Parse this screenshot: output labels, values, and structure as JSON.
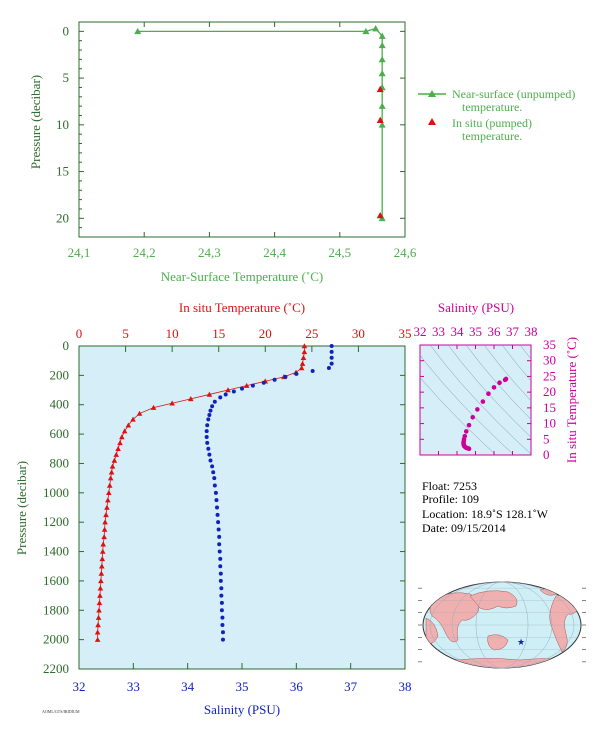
{
  "colors": {
    "green": "#4cae4c",
    "axis_green": "#2e6b2e",
    "red": "#dd1111",
    "blue": "#1122bb",
    "magenta": "#cc0099",
    "panel_bg": "#d6eef7",
    "map_land": "#f0b0b0",
    "map_ocean": "#cfeff6"
  },
  "top_chart": {
    "xlabel": "Near-Surface Temperature (˚C)",
    "ylabel": "Pressure (decibar)",
    "xticks": [
      "24,1",
      "24,2",
      "24,3",
      "24,4",
      "24,5",
      "24,6"
    ],
    "yticks": [
      "0",
      "5",
      "10",
      "15",
      "20"
    ],
    "legend": {
      "unpumped_line1": "Near-surface (unpumped)",
      "unpumped_line2": "temperature.",
      "pumped_line1": "In situ (pumped)",
      "pumped_line2": "temperature."
    }
  },
  "bottom_chart": {
    "top_xlabel": "In situ Temperature (˚C)",
    "bottom_xlabel": "Salinity (PSU)",
    "ylabel": "Pressure (decibar)",
    "temp_ticks": [
      "0",
      "5",
      "10",
      "15",
      "20",
      "25",
      "30",
      "35"
    ],
    "sal_ticks": [
      "32",
      "33",
      "34",
      "35",
      "36",
      "37",
      "38"
    ],
    "pressure_ticks": [
      "0",
      "200",
      "400",
      "600",
      "800",
      "1000",
      "1200",
      "1400",
      "1600",
      "1800",
      "2000",
      "2200"
    ],
    "footer_code": "AOML/GTS/IRIDIUM"
  },
  "ts_chart": {
    "title": "Salinity (PSU)",
    "ylabel": "In situ Temperature (˚C)",
    "sal_ticks": [
      "32",
      "33",
      "34",
      "35",
      "36",
      "37",
      "38"
    ],
    "temp_ticks": [
      "0",
      "5",
      "10",
      "15",
      "20",
      "25",
      "30",
      "35"
    ]
  },
  "info": {
    "float": "Float:  7253",
    "profile": "Profile:  109",
    "location": "Location:  18.9˚S  128.1˚W",
    "date": "Date:  09/15/2014"
  },
  "map": {
    "marker_icon": "star-icon"
  },
  "chart_data": [
    {
      "type": "line",
      "title": "",
      "xlabel": "Near-Surface Temperature (˚C)",
      "ylabel": "Pressure (decibar)",
      "xlim": [
        24.1,
        24.6
      ],
      "ylim": [
        22,
        -1
      ],
      "series": [
        {
          "name": "Near-surface (unpumped) temperature.",
          "points": [
            [
              24.19,
              0.0
            ],
            [
              24.54,
              0.0
            ],
            [
              24.555,
              -0.3
            ],
            [
              24.565,
              0.5
            ],
            [
              24.565,
              1.5
            ],
            [
              24.565,
              3.0
            ],
            [
              24.565,
              4.5
            ],
            [
              24.565,
              6.0
            ],
            [
              24.565,
              8.0
            ],
            [
              24.565,
              10.0
            ],
            [
              24.565,
              20.0
            ]
          ]
        },
        {
          "name": "In situ (pumped) temperature.",
          "points": [
            [
              24.562,
              6.2
            ],
            [
              24.562,
              9.5
            ],
            [
              24.562,
              19.7
            ]
          ]
        }
      ]
    },
    {
      "type": "scatter",
      "title": "",
      "ylabel": "Pressure (decibar)",
      "ylim": [
        2200,
        0
      ],
      "series": [
        {
          "name": "In situ Temperature (˚C)",
          "xlim": [
            0,
            35
          ],
          "points": [
            [
              24.2,
              0
            ],
            [
              24.2,
              40
            ],
            [
              24.1,
              80
            ],
            [
              24.0,
              120
            ],
            [
              23.9,
              150
            ],
            [
              23.3,
              180
            ],
            [
              22.0,
              210
            ],
            [
              20.0,
              240
            ],
            [
              18.0,
              270
            ],
            [
              16.0,
              300
            ],
            [
              14.0,
              330
            ],
            [
              12.0,
              360
            ],
            [
              10.0,
              390
            ],
            [
              8.0,
              420
            ],
            [
              6.5,
              460
            ],
            [
              5.8,
              500
            ],
            [
              5.3,
              540
            ],
            [
              4.9,
              580
            ],
            [
              4.6,
              620
            ],
            [
              4.4,
              660
            ],
            [
              4.2,
              700
            ],
            [
              4.0,
              740
            ],
            [
              3.8,
              780
            ],
            [
              3.6,
              820
            ],
            [
              3.5,
              860
            ],
            [
              3.4,
              900
            ],
            [
              3.3,
              950
            ],
            [
              3.2,
              1000
            ],
            [
              3.1,
              1050
            ],
            [
              3.0,
              1100
            ],
            [
              2.9,
              1150
            ],
            [
              2.8,
              1200
            ],
            [
              2.75,
              1250
            ],
            [
              2.7,
              1300
            ],
            [
              2.6,
              1350
            ],
            [
              2.55,
              1400
            ],
            [
              2.5,
              1450
            ],
            [
              2.45,
              1500
            ],
            [
              2.4,
              1550
            ],
            [
              2.35,
              1600
            ],
            [
              2.3,
              1650
            ],
            [
              2.25,
              1700
            ],
            [
              2.2,
              1750
            ],
            [
              2.15,
              1800
            ],
            [
              2.1,
              1850
            ],
            [
              2.05,
              1900
            ],
            [
              2.0,
              1950
            ],
            [
              2.0,
              2000
            ]
          ]
        },
        {
          "name": "Salinity (PSU)",
          "xlim": [
            32,
            38
          ],
          "points": [
            [
              36.65,
              0
            ],
            [
              36.65,
              40
            ],
            [
              36.65,
              80
            ],
            [
              36.65,
              120
            ],
            [
              36.6,
              150
            ],
            [
              36.3,
              170
            ],
            [
              36.0,
              190
            ],
            [
              35.8,
              210
            ],
            [
              35.6,
              230
            ],
            [
              35.4,
              250
            ],
            [
              35.2,
              270
            ],
            [
              35.0,
              290
            ],
            [
              34.85,
              310
            ],
            [
              34.7,
              330
            ],
            [
              34.6,
              350
            ],
            [
              34.5,
              380
            ],
            [
              34.45,
              410
            ],
            [
              34.42,
              440
            ],
            [
              34.4,
              470
            ],
            [
              34.38,
              500
            ],
            [
              34.36,
              540
            ],
            [
              34.35,
              580
            ],
            [
              34.35,
              620
            ],
            [
              34.36,
              660
            ],
            [
              34.38,
              700
            ],
            [
              34.4,
              740
            ],
            [
              34.42,
              780
            ],
            [
              34.45,
              820
            ],
            [
              34.47,
              860
            ],
            [
              34.49,
              900
            ],
            [
              34.5,
              950
            ],
            [
              34.52,
              1000
            ],
            [
              34.53,
              1050
            ],
            [
              34.54,
              1100
            ],
            [
              34.55,
              1150
            ],
            [
              34.56,
              1200
            ],
            [
              34.57,
              1250
            ],
            [
              34.58,
              1300
            ],
            [
              34.58,
              1350
            ],
            [
              34.59,
              1400
            ],
            [
              34.6,
              1450
            ],
            [
              34.6,
              1500
            ],
            [
              34.61,
              1550
            ],
            [
              34.61,
              1600
            ],
            [
              34.62,
              1650
            ],
            [
              34.62,
              1700
            ],
            [
              34.63,
              1750
            ],
            [
              34.63,
              1800
            ],
            [
              34.64,
              1850
            ],
            [
              34.64,
              1900
            ],
            [
              34.65,
              1950
            ],
            [
              34.65,
              2000
            ]
          ]
        }
      ]
    },
    {
      "type": "scatter",
      "title": "Salinity (PSU)",
      "xlabel": "Salinity (PSU)",
      "ylabel": "In situ Temperature (˚C)",
      "xlim": [
        32,
        38
      ],
      "ylim": [
        0,
        35
      ],
      "series": [
        {
          "name": "T-S",
          "points": [
            [
              36.65,
              24.2
            ],
            [
              36.6,
              23.9
            ],
            [
              36.3,
              23.0
            ],
            [
              36.0,
              21.5
            ],
            [
              35.7,
              19.5
            ],
            [
              35.4,
              17.0
            ],
            [
              35.1,
              14.5
            ],
            [
              34.85,
              12.0
            ],
            [
              34.65,
              9.5
            ],
            [
              34.5,
              7.5
            ],
            [
              34.42,
              6.0
            ],
            [
              34.38,
              5.0
            ],
            [
              34.36,
              4.3
            ],
            [
              34.35,
              3.8
            ],
            [
              34.36,
              3.4
            ],
            [
              34.38,
              3.0
            ],
            [
              34.4,
              2.8
            ],
            [
              34.45,
              2.5
            ],
            [
              34.5,
              2.3
            ],
            [
              34.55,
              2.2
            ],
            [
              34.6,
              2.1
            ],
            [
              34.65,
              2.0
            ]
          ]
        }
      ]
    }
  ]
}
